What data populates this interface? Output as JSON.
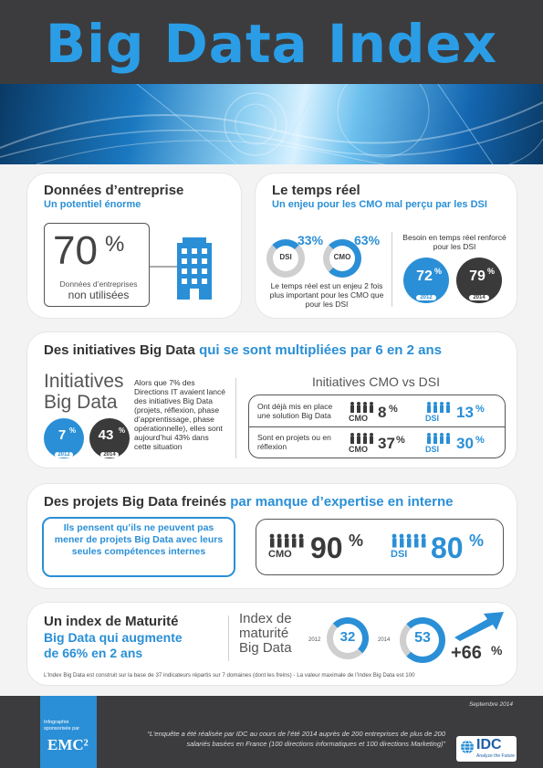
{
  "header": {
    "title": "Big Data Index"
  },
  "s1": {
    "title": "Données d’entreprise",
    "subtitle": "Un potentiel énorme",
    "stat": "70",
    "stat_unit": "%",
    "desc1": "Données d’entreprises",
    "desc2": "non utilisées"
  },
  "s2": {
    "title": "Le temps réel",
    "subtitle": "Un enjeu pour les CMO mal perçu par les DSI",
    "dsi_pct": "33%",
    "dsi_label": "DSI",
    "cmo_pct": "63%",
    "cmo_label": "CMO",
    "note": "Le temps réel est un enjeu 2 fois plus important pour les CMO que pour les DSI",
    "need_label": "Besoin en temps réel renforcé pour les DSI",
    "c2012": "72",
    "c2012_year": "2012",
    "c2014": "79",
    "c2014_year": "2014",
    "pct": "%"
  },
  "s3": {
    "title_dark": "Des initiatives Big Data",
    "title_blue": "qui se sont multipliées par 6 en 2 ans",
    "big1": "Initiatives",
    "big2": "Big Data",
    "text": "Alors que 7% des Directions IT avaient lancé des initiatives Big Data (projets, réflexion, phase d’apprentissage, phase opérationnelle), elles sont aujourd’hui 43% dans cette situation",
    "c2012": "7",
    "c2012_year": "2012",
    "c2014": "43",
    "c2014_year": "2014",
    "pct": "%",
    "sub_title": "Initiatives CMO vs DSI",
    "row1_label": "Ont déjà mis en place une solution Big Data",
    "row1_cmo": "8",
    "row1_dsi": "13",
    "row2_label": "Sont en projets ou en réflexion",
    "row2_cmo": "37",
    "row2_dsi": "30",
    "cmo": "CMO",
    "dsi": "DSI"
  },
  "s4": {
    "title_dark": "Des projets Big Data freinés",
    "title_blue": "par manque d’expertise en interne",
    "quote": "Ils pensent qu’ils ne peuvent pas mener de projets Big Data avec leurs seules compétences internes",
    "cmo": "CMO",
    "cmo_pct": "90",
    "dsi": "DSI",
    "dsi_pct": "80",
    "pct": "%"
  },
  "s5": {
    "title_dark": "Un index de Maturité",
    "title_blue1": "Big Data qui augmente",
    "title_blue2": "de 66% en 2 ans",
    "big1": "Index de",
    "big2": "maturité",
    "big3": "Big Data",
    "y2012": "2012",
    "v2012": "32",
    "y2014": "2014",
    "v2014": "53",
    "growth": "+66",
    "pct": "%",
    "footnote": "L’Index Big Data est construit sur la base de 37 indicateurs répartis sur 7 domaines (dont les freins) - La valeur maximale de l’Index Big Data est 100"
  },
  "footer": {
    "date": "Septembre 2014",
    "emc_small": "Infographie sponsorisée par",
    "emc": "EMC²",
    "quote": "“L’enquête a été réalisée par IDC au cours de l’été 2014 auprès de 200 entreprises de plus de 200 salariés basées en France (100 directions informatiques et 100 directions Marketing)”",
    "idc": "IDC",
    "idc_tag": "Analyze the Future"
  },
  "colors": {
    "blue": "#2a8fd6",
    "dark": "#3a3a3a",
    "grey": "#cfcfcf"
  }
}
